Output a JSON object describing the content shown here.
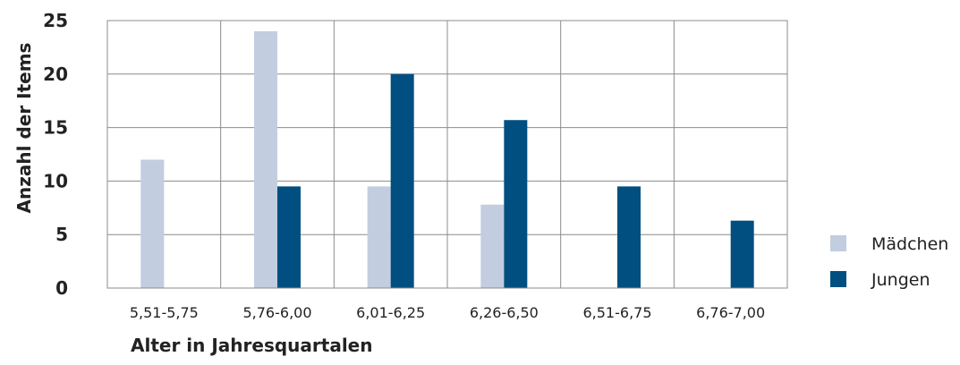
{
  "chart_data": {
    "type": "bar",
    "title": "",
    "xlabel": "Alter in Jahresquartalen",
    "ylabel": "Anzahl der Items",
    "categories": [
      "5,51-5,75",
      "5,76-6,00",
      "6,01-6,25",
      "6,26-6,50",
      "6,51-6,75",
      "6,76-7,00"
    ],
    "series": [
      {
        "name": "Mädchen",
        "color": "#c2cddf",
        "values": [
          12,
          24,
          9.5,
          7.8,
          0,
          0
        ]
      },
      {
        "name": "Jungen",
        "color": "#004f80",
        "values": [
          0,
          9.5,
          20,
          15.7,
          9.5,
          6.3
        ]
      }
    ],
    "ylim": [
      0,
      25
    ],
    "yticks": [
      0,
      5,
      10,
      15,
      20,
      25
    ],
    "grid": true,
    "legend_position": "right"
  }
}
